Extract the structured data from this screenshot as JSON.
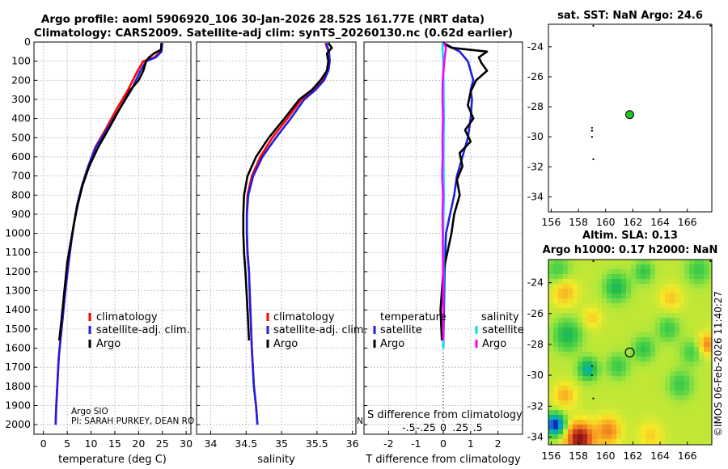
{
  "title": {
    "line1": "Argo profile: aoml 5906920_106 30-Jan-2026 28.52S 161.77E (NRT data)",
    "line2": "Climatology: CARS2009. Satellite-adj clim: synTS_20260130.nc (0.62d earlier)"
  },
  "credit": {
    "line1": "Argo SIO",
    "line2": "PI: SARAH PURKEY, DEAN RO",
    "clipped": "N"
  },
  "watermark": "©IMOS 06-Feb-2026 11:40:27",
  "colors": {
    "climatology": "#ff0000",
    "satellite": "#1f1fe0",
    "argo": "#000000",
    "sal_sat": "#00e5e5",
    "sal_argo": "#ff00ff"
  },
  "chart_data": [
    {
      "type": "line",
      "id": "temperature",
      "xlabel": "temperature (deg C)",
      "ylabel": "",
      "xlim": [
        -2,
        31
      ],
      "ylim": [
        2050,
        0
      ],
      "xticks": [
        0,
        5,
        10,
        15,
        20,
        25,
        30
      ],
      "yticks": [
        0,
        100,
        200,
        300,
        400,
        500,
        600,
        700,
        800,
        900,
        1000,
        1100,
        1200,
        1300,
        1400,
        1500,
        1600,
        1700,
        1800,
        1900,
        2000
      ],
      "legend": [
        "climatology",
        "satellite-adj. clim.",
        "Argo"
      ],
      "series": [
        {
          "name": "climatology",
          "x": [
            24.9,
            24.7,
            23.3,
            21.0,
            19.8,
            17.8,
            15.4,
            13.2,
            10.9,
            9.4,
            8.1,
            7.1,
            6.4,
            5.8,
            5.3,
            4.6,
            4.0,
            3.6,
            3.2,
            2.9,
            2.7,
            2.55
          ],
          "y": [
            5,
            50,
            80,
            100,
            150,
            250,
            350,
            450,
            550,
            650,
            750,
            850,
            950,
            1050,
            1150,
            1300,
            1450,
            1550,
            1650,
            1800,
            1900,
            2000
          ]
        },
        {
          "name": "satellite-adj. clim.",
          "x": [
            25.0,
            24.8,
            23.6,
            21.6,
            20.4,
            18.5,
            16.0,
            13.5,
            11.0,
            9.4,
            8.1,
            7.1,
            6.4,
            5.8,
            5.3,
            4.6,
            4.0,
            3.6,
            3.2,
            2.9,
            2.7,
            2.55
          ],
          "y": [
            5,
            50,
            80,
            100,
            150,
            250,
            350,
            450,
            550,
            650,
            750,
            850,
            950,
            1050,
            1150,
            1300,
            1450,
            1550,
            1650,
            1800,
            1900,
            2000
          ]
        },
        {
          "name": "Argo",
          "x": [
            24.8,
            24.7,
            23.2,
            22.2,
            21.6,
            21.0,
            20.0,
            18.3,
            16.0,
            13.8,
            11.5,
            9.6,
            8.2,
            7.2,
            6.4,
            5.7,
            5.0,
            4.4,
            3.8,
            3.3
          ],
          "y": [
            5,
            40,
            60,
            80,
            100,
            150,
            200,
            250,
            350,
            450,
            550,
            650,
            750,
            850,
            950,
            1050,
            1150,
            1300,
            1450,
            1560
          ]
        }
      ]
    },
    {
      "type": "line",
      "id": "salinity",
      "xlabel": "salinity",
      "ylabel": "",
      "xlim": [
        33.8,
        36.05
      ],
      "ylim": [
        2050,
        0
      ],
      "xticks": [
        34,
        34.5,
        35,
        35.5,
        36
      ],
      "legend": [
        "climatology",
        "satellite-adj. clim.",
        "Argo"
      ],
      "series": [
        {
          "name": "climatology",
          "x": [
            35.62,
            35.66,
            35.68,
            35.66,
            35.58,
            35.45,
            35.28,
            35.08,
            34.87,
            34.7,
            34.58,
            34.52,
            34.51,
            34.51,
            34.52,
            34.54,
            34.56,
            34.58,
            34.61,
            34.64,
            34.66
          ],
          "y": [
            5,
            50,
            100,
            150,
            200,
            250,
            300,
            400,
            500,
            600,
            700,
            800,
            900,
            1000,
            1100,
            1200,
            1400,
            1600,
            1800,
            1900,
            2000
          ]
        },
        {
          "name": "satellite-adj. clim.",
          "x": [
            35.63,
            35.67,
            35.68,
            35.66,
            35.6,
            35.48,
            35.32,
            35.13,
            34.92,
            34.73,
            34.6,
            34.53,
            34.51,
            34.51,
            34.52,
            34.54,
            34.56,
            34.58,
            34.61,
            34.64,
            34.66
          ],
          "y": [
            5,
            50,
            100,
            150,
            200,
            250,
            300,
            400,
            500,
            600,
            700,
            800,
            900,
            1000,
            1100,
            1200,
            1400,
            1600,
            1800,
            1900,
            2000
          ]
        },
        {
          "name": "Argo",
          "x": [
            35.66,
            35.71,
            35.64,
            35.66,
            35.64,
            35.55,
            35.43,
            35.25,
            35.04,
            34.82,
            34.64,
            34.52,
            34.47,
            34.46,
            34.46,
            34.47,
            34.49,
            34.52,
            34.54
          ],
          "y": [
            5,
            30,
            60,
            100,
            150,
            200,
            250,
            300,
            400,
            500,
            600,
            700,
            800,
            900,
            1000,
            1100,
            1200,
            1400,
            1560
          ]
        }
      ]
    },
    {
      "type": "line",
      "id": "difference",
      "xlabel": "T difference from climatology",
      "xlabel_top": "S difference from climatology",
      "xlim": [
        -2.9,
        2.9
      ],
      "ylim": [
        2050,
        0
      ],
      "xticks": [
        -2,
        -1,
        0,
        1,
        2
      ],
      "xticks_top": [
        -0.5,
        -0.25,
        0,
        0.25,
        0.5
      ],
      "legend_left_title": "temperature",
      "legend_right_title": "salinity",
      "legend_left": [
        "satellite",
        "Argo"
      ],
      "legend_right": [
        "satellite",
        "Argo"
      ],
      "series": [
        {
          "name": "T satellite",
          "x": [
            0.0,
            0.2,
            0.6,
            0.9,
            1.0,
            1.1,
            1.0,
            1.05,
            1.0,
            0.9,
            0.7,
            0.5,
            0.4,
            0.25,
            0.1,
            0.05,
            0.0
          ],
          "y": [
            5,
            20,
            50,
            100,
            150,
            200,
            250,
            300,
            400,
            500,
            600,
            700,
            800,
            900,
            1000,
            1200,
            1600
          ]
        },
        {
          "name": "T Argo",
          "x": [
            0.0,
            0.3,
            1.6,
            1.3,
            1.4,
            1.6,
            1.2,
            1.0,
            0.9,
            1.1,
            0.8,
            1.0,
            0.6,
            0.7,
            0.5,
            0.6,
            0.4,
            0.3,
            0.0,
            -0.1,
            -0.05
          ],
          "y": [
            5,
            30,
            50,
            80,
            110,
            150,
            200,
            260,
            330,
            400,
            460,
            520,
            580,
            650,
            720,
            800,
            900,
            1000,
            1200,
            1400,
            1560
          ]
        },
        {
          "name": "S satellite",
          "x": [
            -0.02,
            -0.03,
            0.0,
            0.01,
            0.02,
            0.01,
            0.02,
            0.0,
            0.01,
            0.0,
            0.0
          ],
          "y": [
            5,
            40,
            100,
            200,
            400,
            600,
            800,
            1000,
            1200,
            1400,
            1600
          ]
        },
        {
          "name": "S Argo",
          "x": [
            0.02,
            0.1,
            0.05,
            -0.02,
            -0.03,
            -0.01,
            -0.03,
            -0.02,
            -0.04,
            -0.01,
            -0.03,
            -0.02,
            -0.01,
            0.0
          ],
          "y": [
            5,
            30,
            80,
            200,
            300,
            400,
            500,
            600,
            700,
            800,
            900,
            1000,
            1200,
            1560
          ]
        }
      ]
    },
    {
      "type": "scatter",
      "id": "sst_map",
      "title": "sat. SST: NaN Argo: 24.6",
      "xlim": [
        155.8,
        167.8
      ],
      "ylim": [
        -35,
        -22.5
      ],
      "xticks": [
        156,
        158,
        160,
        162,
        164,
        166
      ],
      "yticks": [
        -24,
        -26,
        -28,
        -30,
        -32,
        -34
      ],
      "points": [
        {
          "x": 161.77,
          "y": -28.52,
          "kind": "float"
        },
        {
          "x": 159.0,
          "y": -29.4,
          "kind": "dot"
        },
        {
          "x": 159.0,
          "y": -29.6,
          "kind": "dot"
        },
        {
          "x": 159.0,
          "y": -30.0,
          "kind": "dot"
        },
        {
          "x": 159.1,
          "y": -31.5,
          "kind": "dot"
        },
        {
          "x": 159.1,
          "y": -22.6,
          "kind": "dot"
        },
        {
          "x": 167.7,
          "y": -22.6,
          "kind": "dot"
        }
      ]
    },
    {
      "type": "heatmap",
      "id": "sla_map",
      "title_line1": "Altim. SLA: 0.13",
      "title_line2": "Argo h1000: 0.17 h2000: NaN",
      "xlim": [
        155.8,
        167.8
      ],
      "ylim": [
        -34.5,
        -22.5
      ],
      "xticks": [
        156,
        158,
        160,
        162,
        164,
        166
      ],
      "yticks": [
        -24,
        -26,
        -28,
        -30,
        -32,
        -34
      ],
      "points": [
        {
          "x": 161.77,
          "y": -28.52,
          "kind": "float"
        },
        {
          "x": 159.0,
          "y": -29.4,
          "kind": "dot"
        },
        {
          "x": 159.0,
          "y": -30.0,
          "kind": "dot"
        },
        {
          "x": 159.1,
          "y": -31.5,
          "kind": "dot"
        },
        {
          "x": 159.1,
          "y": -22.6,
          "kind": "dot"
        },
        {
          "x": 167.7,
          "y": -22.6,
          "kind": "dot"
        }
      ],
      "field_blobs": [
        {
          "x": 160.8,
          "y": -24.3,
          "v": -1.3,
          "s": 0.9
        },
        {
          "x": 162.8,
          "y": -23.3,
          "v": -1.0,
          "s": 0.7
        },
        {
          "x": 156.5,
          "y": -23.2,
          "v": -0.8,
          "s": 0.9
        },
        {
          "x": 166.8,
          "y": -23.2,
          "v": -0.9,
          "s": 0.9
        },
        {
          "x": 157.0,
          "y": -24.6,
          "v": 0.9,
          "s": 0.9
        },
        {
          "x": 157.2,
          "y": -27.4,
          "v": -1.3,
          "s": 1.0
        },
        {
          "x": 158.7,
          "y": -29.6,
          "v": -1.7,
          "s": 0.7
        },
        {
          "x": 160.9,
          "y": -29.4,
          "v": -0.9,
          "s": 0.8
        },
        {
          "x": 162.8,
          "y": -28.3,
          "v": -1.0,
          "s": 0.8
        },
        {
          "x": 164.6,
          "y": -27.0,
          "v": -0.9,
          "s": 0.8
        },
        {
          "x": 166.3,
          "y": -28.5,
          "v": -0.8,
          "s": 0.8
        },
        {
          "x": 167.5,
          "y": -28.0,
          "v": 1.3,
          "s": 0.7
        },
        {
          "x": 165.5,
          "y": -30.6,
          "v": -0.9,
          "s": 0.9
        },
        {
          "x": 156.3,
          "y": -33.2,
          "v": -2.9,
          "s": 0.7
        },
        {
          "x": 158.1,
          "y": -34.1,
          "v": 2.6,
          "s": 1.0
        },
        {
          "x": 160.2,
          "y": -33.6,
          "v": 1.3,
          "s": 0.9
        },
        {
          "x": 163.3,
          "y": -33.9,
          "v": 0.6,
          "s": 0.9
        },
        {
          "x": 157.0,
          "y": -31.3,
          "v": 0.9,
          "s": 0.8
        },
        {
          "x": 164.8,
          "y": -25.0,
          "v": 0.7,
          "s": 0.8
        },
        {
          "x": 159.0,
          "y": -26.3,
          "v": 0.6,
          "s": 0.7
        }
      ]
    }
  ]
}
